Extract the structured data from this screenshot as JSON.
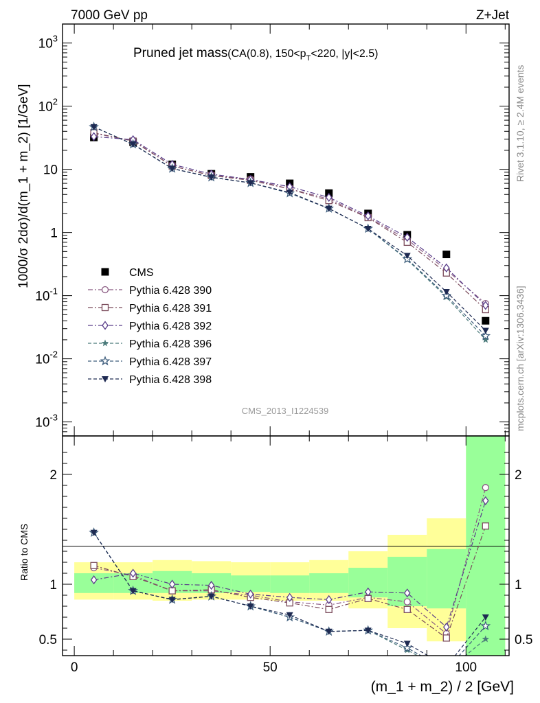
{
  "header": {
    "left": "7000 GeV pp",
    "right": "Z+Jet"
  },
  "plot_title": {
    "main": "Pruned jet mass",
    "sub": "(CA(0.8), 150<p",
    "sub_sub": "T",
    "sub_tail": "<220, |y|<2.5)"
  },
  "side_labels": {
    "rivet": "Rivet 3.1.10, ≥ 2.4M events",
    "mcplots": "mcplots.cern.ch [arXiv:1306.3436]"
  },
  "analysis_id": "CMS_2013_I1224539",
  "chart_data": [
    {
      "type": "scatter",
      "panel": "main",
      "ylabel": "1000/σ 2dσ)/d(m_1 + m_2) [1/GeV]",
      "yscale": "log",
      "ylim": [
        0.0006,
        2000
      ],
      "xlim": [
        -3,
        111
      ],
      "x": [
        5,
        15,
        25,
        35,
        45,
        55,
        65,
        75,
        85,
        95,
        105
      ],
      "y_tick_labels": [
        "10^-3",
        "10^-2",
        "10^-1",
        "1",
        "10",
        "10^2",
        "10^3"
      ],
      "legend_position": "left",
      "series": [
        {
          "name": "CMS",
          "color": "#000000",
          "marker": "square-filled",
          "values": [
            32,
            27,
            12,
            8.5,
            7.6,
            6.0,
            4.2,
            2.0,
            0.92,
            0.45,
            0.04
          ]
        },
        {
          "name": "Pythia 6.428 390",
          "color": "#8a5a82",
          "marker": "circle-open",
          "line": "dashdot",
          "values": [
            37,
            28.5,
            11.3,
            8.0,
            7.0,
            4.9,
            3.4,
            1.75,
            0.77,
            0.255,
            0.075
          ]
        },
        {
          "name": "Pythia 6.428 391",
          "color": "#7a4a5a",
          "marker": "square-open",
          "line": "dashdot",
          "values": [
            38,
            28.0,
            11.3,
            8.0,
            6.7,
            4.9,
            3.2,
            1.72,
            0.7,
            0.228,
            0.06
          ]
        },
        {
          "name": "Pythia 6.428 392",
          "color": "#5a3e8a",
          "marker": "diamond-open",
          "line": "dashdot",
          "values": [
            33,
            29.5,
            12.0,
            8.4,
            6.9,
            5.3,
            3.6,
            1.83,
            0.84,
            0.275,
            0.07
          ]
        },
        {
          "name": "Pythia 6.428 396",
          "color": "#4a7a7a",
          "marker": "star-filled",
          "line": "dashed",
          "values": [
            47,
            25.0,
            10.3,
            7.5,
            6.1,
            4.2,
            2.4,
            1.15,
            0.37,
            0.095,
            0.02
          ]
        },
        {
          "name": "Pythia 6.428 397",
          "color": "#3a5a7a",
          "marker": "star-open",
          "line": "dashed",
          "values": [
            47,
            25.0,
            10.3,
            7.5,
            6.1,
            4.2,
            2.4,
            1.15,
            0.38,
            0.1,
            0.023
          ]
        },
        {
          "name": "Pythia 6.428 398",
          "color": "#1e2a52",
          "marker": "triangle-down-filled",
          "line": "dashed",
          "values": [
            47,
            25.0,
            10.3,
            7.5,
            6.1,
            4.3,
            2.4,
            1.15,
            0.43,
            0.115,
            0.028
          ]
        }
      ]
    },
    {
      "type": "line",
      "panel": "ratio",
      "ylabel": "Ratio to CMS",
      "xlabel": "(m_1 + m_2) / 2 [GeV]",
      "ylim": [
        0.35,
        2.35
      ],
      "xlim": [
        -3,
        111
      ],
      "x_ticks": [
        0,
        50,
        100
      ],
      "y_ticks": [
        0.5,
        1,
        2
      ],
      "x": [
        5,
        15,
        25,
        35,
        45,
        55,
        65,
        75,
        85,
        95,
        105
      ],
      "bands": {
        "bins": [
          0,
          10,
          20,
          30,
          40,
          50,
          60,
          70,
          80,
          90,
          100,
          110
        ],
        "yellow": [
          [
            0.86,
            1.2
          ],
          [
            0.86,
            1.2
          ],
          [
            0.85,
            1.22
          ],
          [
            0.86,
            1.21
          ],
          [
            0.86,
            1.2
          ],
          [
            0.85,
            1.2
          ],
          [
            0.85,
            1.22
          ],
          [
            0.78,
            1.3
          ],
          [
            0.6,
            1.45
          ],
          [
            0.48,
            1.6
          ],
          [
            0.2,
            3.0
          ]
        ],
        "green": [
          [
            0.92,
            1.1
          ],
          [
            0.92,
            1.1
          ],
          [
            0.92,
            1.12
          ],
          [
            0.92,
            1.1
          ],
          [
            0.93,
            1.08
          ],
          [
            0.92,
            1.08
          ],
          [
            0.92,
            1.1
          ],
          [
            0.88,
            1.15
          ],
          [
            0.8,
            1.25
          ],
          [
            0.78,
            1.32
          ],
          [
            0.2,
            3.0
          ]
        ]
      },
      "series": [
        {
          "name": "Pythia 6.428 390",
          "values": [
            1.15,
            1.08,
            0.94,
            0.94,
            0.9,
            0.84,
            0.81,
            0.88,
            0.84,
            0.55,
            1.88
          ]
        },
        {
          "name": "Pythia 6.428 391",
          "values": [
            1.17,
            1.07,
            0.94,
            0.95,
            0.88,
            0.83,
            0.77,
            0.87,
            0.77,
            0.51,
            1.53
          ]
        },
        {
          "name": "Pythia 6.428 392",
          "values": [
            1.04,
            1.1,
            1.0,
            0.99,
            0.91,
            0.88,
            0.86,
            0.93,
            0.92,
            0.61,
            1.76
          ]
        },
        {
          "name": "Pythia 6.428 396",
          "values": [
            1.47,
            0.94,
            0.86,
            0.89,
            0.8,
            0.7,
            0.57,
            0.58,
            0.4,
            0.21,
            0.5
          ]
        },
        {
          "name": "Pythia 6.428 397",
          "values": [
            1.47,
            0.94,
            0.86,
            0.89,
            0.8,
            0.7,
            0.57,
            0.58,
            0.42,
            0.22,
            0.62
          ]
        },
        {
          "name": "Pythia 6.428 398",
          "values": [
            1.47,
            0.94,
            0.86,
            0.89,
            0.8,
            0.72,
            0.57,
            0.58,
            0.46,
            0.25,
            0.7
          ]
        }
      ]
    }
  ]
}
